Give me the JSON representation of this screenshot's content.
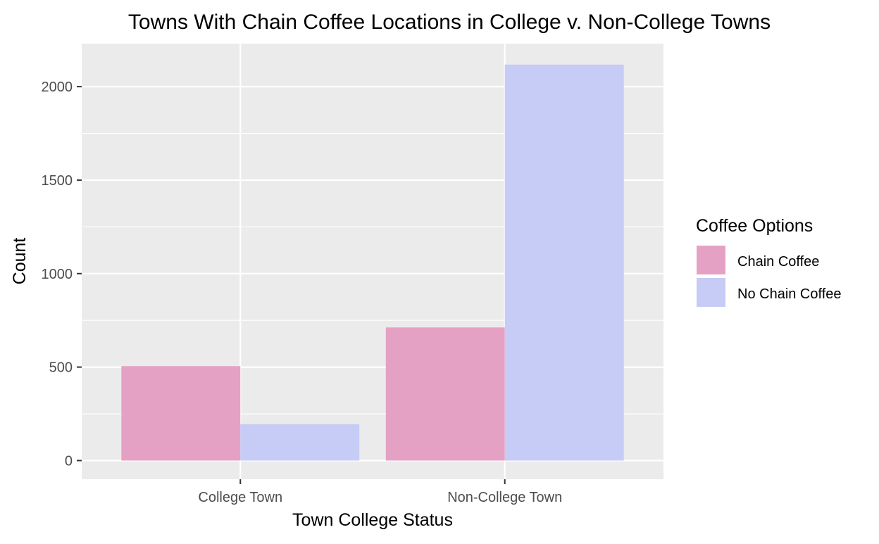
{
  "chart_data": {
    "type": "bar",
    "title": "Towns With Chain Coffee Locations in College v. Non-College Towns",
    "xlabel": "Town College Status",
    "ylabel": "Count",
    "categories": [
      "College Town",
      "Non-College Town"
    ],
    "series": [
      {
        "name": "Chain Coffee",
        "values": [
          505,
          712
        ],
        "color": "#E5A1C4"
      },
      {
        "name": "No Chain Coffee",
        "values": [
          195,
          2118
        ],
        "color": "#C6CCF6"
      }
    ],
    "ylim": [
      -100,
      2230
    ],
    "yticks": [
      0,
      500,
      1000,
      1500,
      2000
    ],
    "grid": true,
    "legend": {
      "title": "Coffee Options",
      "placement": "right"
    },
    "colors": {
      "panel": "#EBEBEB",
      "grid": "#FFFFFF"
    }
  }
}
